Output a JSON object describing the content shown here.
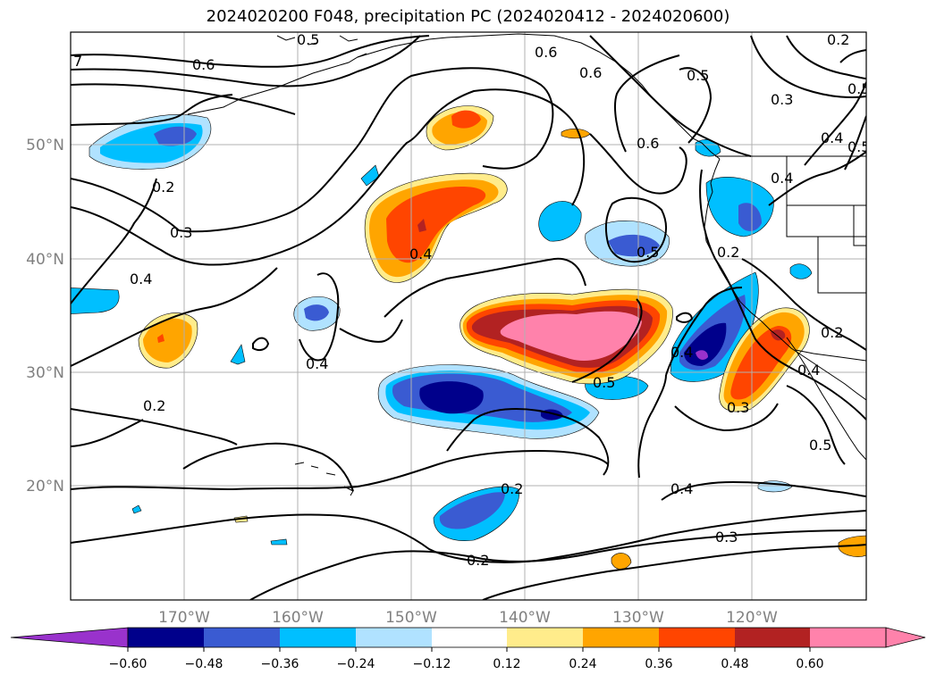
{
  "title": "2024020200 F048, precipitation PC (2024020412 - 2024020600)",
  "lon_ticks": [
    "170°W",
    "160°W",
    "150°W",
    "140°W",
    "130°W",
    "120°W"
  ],
  "lat_ticks": [
    "50°N",
    "40°N",
    "30°N",
    "20°N"
  ],
  "contour_labels": [
    "0.6",
    "0.6",
    "0.5",
    "0.3",
    "0.4",
    "0.5",
    "0.6",
    "0.2",
    "0.3",
    "0.4",
    "0.4",
    "0.4",
    "0.5",
    "0.2",
    "0.4",
    "0.2",
    "0.5",
    "0.5",
    "0.4",
    "0.3",
    "0.2",
    "0.4",
    "0.2",
    "0.2",
    "0.3",
    "0.2",
    "0.5",
    "7",
    "0.6",
    "0.5",
    "0.4"
  ],
  "colorbar": {
    "colors": [
      "#9932cc",
      "#00008b",
      "#3a5bd2",
      "#00bfff",
      "#b0e2ff",
      "#ffffff",
      "#ffec8b",
      "#ffa500",
      "#ff4500",
      "#b22222",
      "#ff82ab",
      "#ff82ab"
    ],
    "tick_labels": [
      "−0.60",
      "−0.48",
      "−0.36",
      "−0.24",
      "−0.12",
      "0.12",
      "0.24",
      "0.36",
      "0.48",
      "0.60"
    ]
  }
}
